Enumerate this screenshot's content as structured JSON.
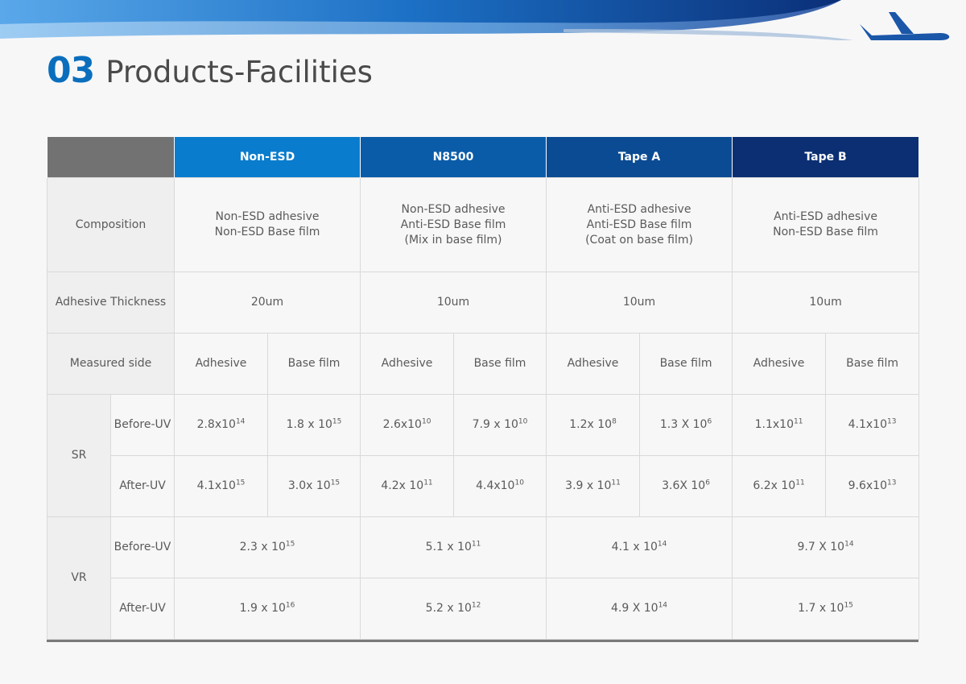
{
  "page": {
    "number": "03",
    "title": "Products-Facilities"
  },
  "colors": {
    "accent": "#0a6ebd",
    "header_gray": "#727272",
    "header_blues": [
      "#0a7ccd",
      "#0a5ca9",
      "#0b4b93",
      "#0b2f72"
    ]
  },
  "table": {
    "headers": [
      "Non-ESD",
      "N8500",
      "Tape A",
      "Tape B"
    ],
    "composition": {
      "label": "Composition",
      "values": [
        [
          "Non-ESD adhesive",
          "Non-ESD Base film"
        ],
        [
          "Non-ESD adhesive",
          "Anti-ESD Base film",
          "(Mix in base film)"
        ],
        [
          "Anti-ESD adhesive",
          "Anti-ESD Base film",
          "(Coat on base film)"
        ],
        [
          "Anti-ESD adhesive",
          "Non-ESD Base film"
        ]
      ]
    },
    "thickness": {
      "label": "Adhesive Thickness",
      "values": [
        "20um",
        "10um",
        "10um",
        "10um"
      ]
    },
    "measured": {
      "label": "Measured side",
      "values": [
        "Adhesive",
        "Base film",
        "Adhesive",
        "Base film",
        "Adhesive",
        "Base film",
        "Adhesive",
        "Base film"
      ]
    },
    "sr": {
      "label": "SR",
      "before": {
        "label": "Before-UV",
        "values": [
          {
            "b": "2.8x10",
            "e": "14"
          },
          {
            "b": "1.8 x 10",
            "e": "15"
          },
          {
            "b": "2.6x10",
            "e": "10"
          },
          {
            "b": "7.9 x 10",
            "e": "10"
          },
          {
            "b": "1.2x 10",
            "e": "8"
          },
          {
            "b": "1.3 X 10",
            "e": "6"
          },
          {
            "b": "1.1x10",
            "e": "11"
          },
          {
            "b": "4.1x10",
            "e": "13"
          }
        ]
      },
      "after": {
        "label": "After-UV",
        "values": [
          {
            "b": "4.1x10",
            "e": "15"
          },
          {
            "b": "3.0x 10",
            "e": "15"
          },
          {
            "b": "4.2x 10",
            "e": "11"
          },
          {
            "b": "4.4x10",
            "e": "10"
          },
          {
            "b": "3.9 x 10",
            "e": "11"
          },
          {
            "b": "3.6X 10",
            "e": "6"
          },
          {
            "b": "6.2x 10",
            "e": "11"
          },
          {
            "b": "9.6x10",
            "e": "13"
          }
        ]
      }
    },
    "vr": {
      "label": "VR",
      "before": {
        "label": "Before-UV",
        "values": [
          {
            "b": "2.3 x 10",
            "e": "15"
          },
          {
            "b": "5.1 x 10",
            "e": "11"
          },
          {
            "b": "4.1 x 10",
            "e": "14"
          },
          {
            "b": "9.7 X 10",
            "e": "14"
          }
        ]
      },
      "after": {
        "label": "After-UV",
        "values": [
          {
            "b": "1.9 x 10",
            "e": "16"
          },
          {
            "b": "5.2 x 10",
            "e": "12"
          },
          {
            "b": "4.9 X 10",
            "e": "14"
          },
          {
            "b": "1.7 x 10",
            "e": "15"
          }
        ]
      }
    }
  }
}
